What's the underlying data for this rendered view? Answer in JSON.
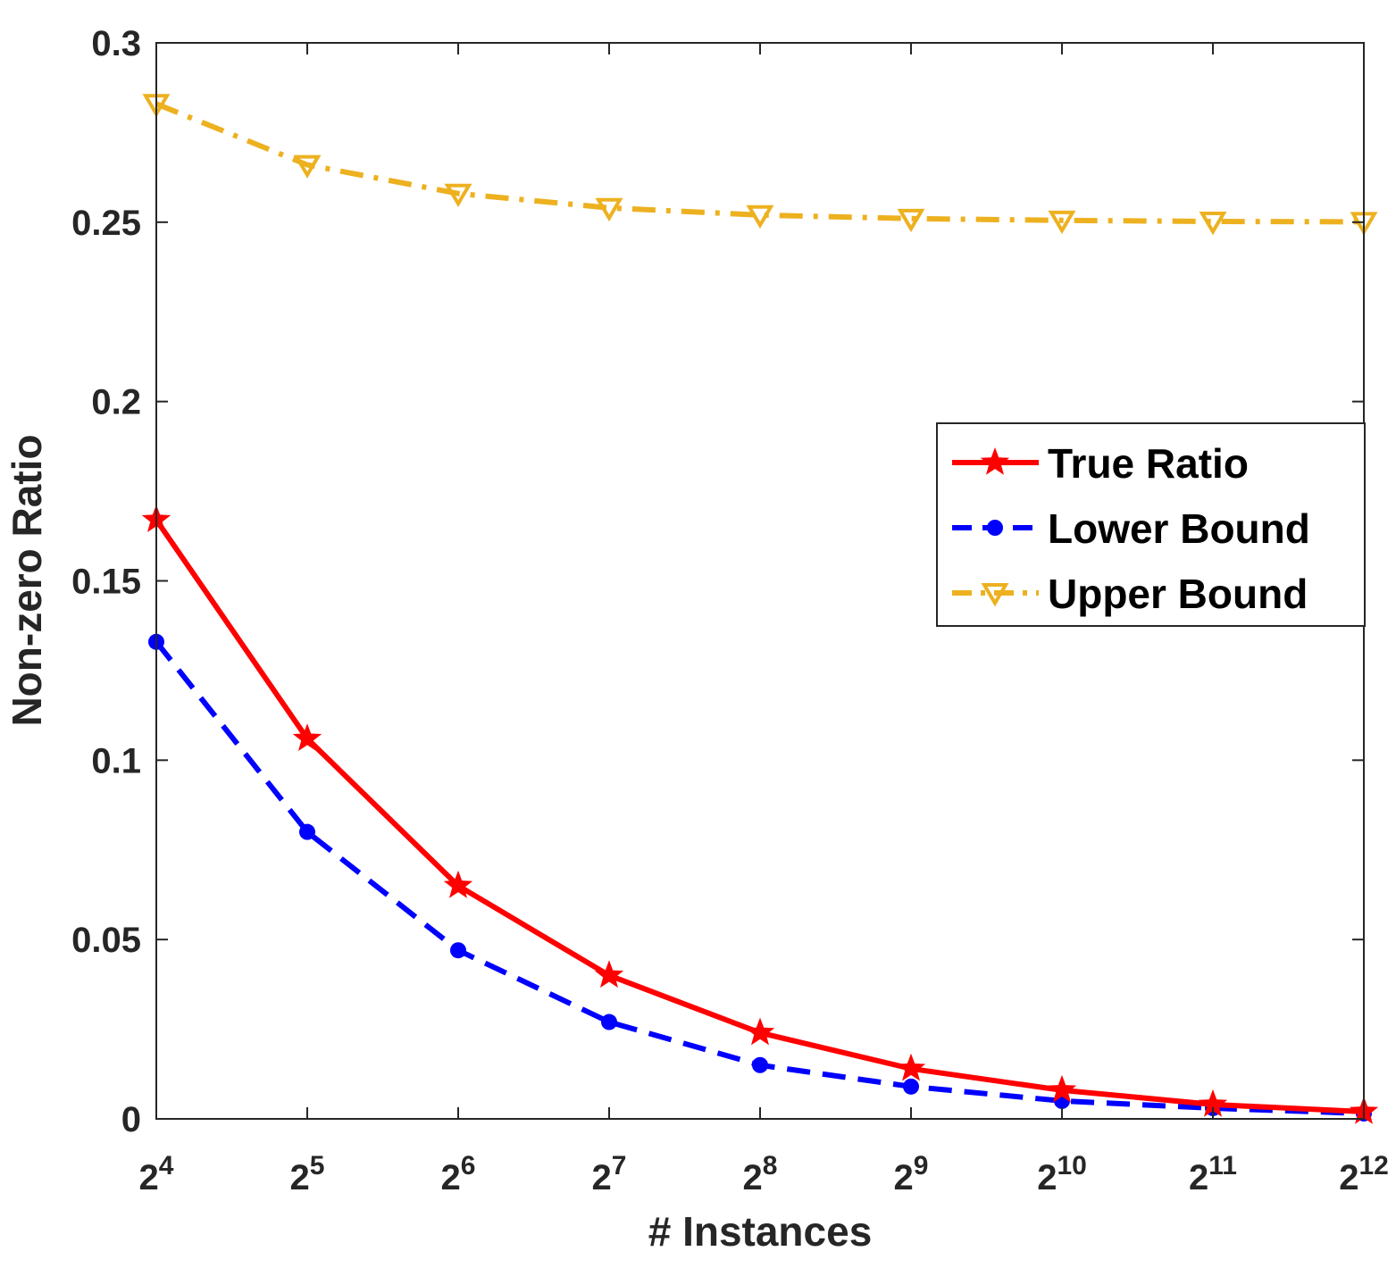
{
  "chart_data": {
    "type": "line",
    "xlabel": "# Instances",
    "ylabel": "Non-zero Ratio",
    "x": [
      16,
      32,
      64,
      128,
      256,
      512,
      1024,
      2048,
      4096
    ],
    "x_tick_labels": [
      {
        "base": "2",
        "exp": "4"
      },
      {
        "base": "2",
        "exp": "5"
      },
      {
        "base": "2",
        "exp": "6"
      },
      {
        "base": "2",
        "exp": "7"
      },
      {
        "base": "2",
        "exp": "8"
      },
      {
        "base": "2",
        "exp": "9"
      },
      {
        "base": "2",
        "exp": "10"
      },
      {
        "base": "2",
        "exp": "11"
      },
      {
        "base": "2",
        "exp": "12"
      }
    ],
    "x_scale": "log2",
    "y_ticks": [
      "0",
      "0.05",
      "0.1",
      "0.15",
      "0.2",
      "0.25",
      "0.3"
    ],
    "ylim": [
      0,
      0.3
    ],
    "grid": false,
    "legend_position": "right-middle",
    "series": [
      {
        "name": "True Ratio",
        "color": "#ff0000",
        "line_style": "solid",
        "marker": "star",
        "values": [
          0.167,
          0.106,
          0.065,
          0.04,
          0.024,
          0.014,
          0.008,
          0.004,
          0.002
        ]
      },
      {
        "name": "Lower Bound",
        "color": "#0000ff",
        "line_style": "dashed",
        "marker": "circle",
        "values": [
          0.133,
          0.08,
          0.047,
          0.027,
          0.015,
          0.009,
          0.005,
          0.003,
          0.0015
        ]
      },
      {
        "name": "Upper Bound",
        "color": "#edb120",
        "line_style": "dash-dot",
        "marker": "triangle-down",
        "values": [
          0.283,
          0.266,
          0.258,
          0.254,
          0.252,
          0.251,
          0.2505,
          0.2502,
          0.2501
        ]
      }
    ]
  }
}
